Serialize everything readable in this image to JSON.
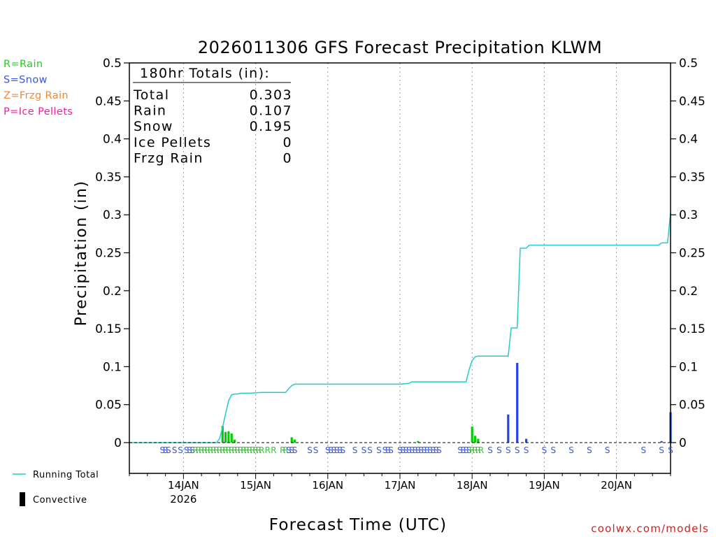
{
  "chart_data": {
    "type": "bar+line",
    "title": "2026011306 GFS Forecast Precipitation KLWM",
    "xlabel": "Forecast Time (UTC)",
    "ylabel": "Precipitation (in)",
    "ylim": [
      0,
      0.5
    ],
    "yticks": [
      0,
      0.05,
      0.1,
      0.15,
      0.2,
      0.25,
      0.3,
      0.35,
      0.4,
      0.45,
      0.5
    ],
    "ytick_labels": [
      "0",
      "0.05",
      "0.1",
      "0.15",
      "0.2",
      "0.25",
      "0.3",
      "0.35",
      "0.4",
      "0.45",
      "0.5"
    ],
    "x_unit": "forecast hours from 2026-01-13 06Z",
    "xlim": [
      0,
      180
    ],
    "xticks": [
      {
        "hour": 18,
        "label": "14JAN",
        "sublabel": "2026"
      },
      {
        "hour": 42,
        "label": "15JAN",
        "sublabel": ""
      },
      {
        "hour": 66,
        "label": "16JAN",
        "sublabel": ""
      },
      {
        "hour": 90,
        "label": "17JAN",
        "sublabel": ""
      },
      {
        "hour": 114,
        "label": "18JAN",
        "sublabel": ""
      },
      {
        "hour": 138,
        "label": "19JAN",
        "sublabel": ""
      },
      {
        "hour": 162,
        "label": "20JAN",
        "sublabel": ""
      }
    ],
    "totals_box": {
      "title": "180hr Totals (in):",
      "rows": [
        {
          "label": "Total",
          "value": "0.303"
        },
        {
          "label": "Rain",
          "value": "0.107"
        },
        {
          "label": "Snow",
          "value": "0.195"
        },
        {
          "label": "Ice Pellets",
          "value": "0"
        },
        {
          "label": "Frzg Rain",
          "value": "0"
        }
      ]
    },
    "type_legend": [
      {
        "text": "R=Rain",
        "color": "#22cc22"
      },
      {
        "text": "S=Snow",
        "color": "#3355ee"
      },
      {
        "text": "Z=Frzg Rain",
        "color": "#ee8833"
      },
      {
        "text": "P=Ice Pellets",
        "color": "#ee2299"
      }
    ],
    "series_legend": [
      {
        "name": "Running Total",
        "kind": "line",
        "color": "#22cccc"
      },
      {
        "name": "Convective",
        "kind": "bar",
        "color": "#000000"
      }
    ],
    "running_total": {
      "color": "#22cccc",
      "points": [
        [
          0,
          0
        ],
        [
          29,
          0
        ],
        [
          30,
          0.005
        ],
        [
          31,
          0.02
        ],
        [
          32,
          0.038
        ],
        [
          33,
          0.055
        ],
        [
          34,
          0.063
        ],
        [
          35,
          0.064
        ],
        [
          36,
          0.064
        ],
        [
          37,
          0.065
        ],
        [
          40,
          0.065
        ],
        [
          44,
          0.066
        ],
        [
          52,
          0.066
        ],
        [
          53,
          0.071
        ],
        [
          54,
          0.075
        ],
        [
          55,
          0.077
        ],
        [
          56,
          0.077
        ],
        [
          60,
          0.077
        ],
        [
          90,
          0.077
        ],
        [
          93,
          0.078
        ],
        [
          94,
          0.08
        ],
        [
          112,
          0.08
        ],
        [
          113,
          0.096
        ],
        [
          114,
          0.108
        ],
        [
          115,
          0.113
        ],
        [
          116,
          0.114
        ],
        [
          126,
          0.114
        ],
        [
          127,
          0.151
        ],
        [
          129,
          0.151
        ],
        [
          130,
          0.256
        ],
        [
          132,
          0.256
        ],
        [
          133,
          0.26
        ],
        [
          134,
          0.26
        ],
        [
          176,
          0.26
        ],
        [
          177,
          0.263
        ],
        [
          179,
          0.263
        ],
        [
          180,
          0.303
        ]
      ]
    },
    "bars": [
      {
        "hour": 31,
        "value": 0.022,
        "color": "#00cc00"
      },
      {
        "hour": 32,
        "value": 0.014,
        "color": "#00cc00"
      },
      {
        "hour": 33,
        "value": 0.015,
        "color": "#00cc00"
      },
      {
        "hour": 34,
        "value": 0.012,
        "color": "#00cc00"
      },
      {
        "hour": 35,
        "value": 0.004,
        "color": "#00cc00"
      },
      {
        "hour": 54,
        "value": 0.007,
        "color": "#00cc00"
      },
      {
        "hour": 55,
        "value": 0.004,
        "color": "#00cc00"
      },
      {
        "hour": 96,
        "value": 0.002,
        "color": "#00cc00"
      },
      {
        "hour": 114,
        "value": 0.021,
        "color": "#00cc00"
      },
      {
        "hour": 115,
        "value": 0.009,
        "color": "#00cc00"
      },
      {
        "hour": 116,
        "value": 0.005,
        "color": "#00cc00"
      },
      {
        "hour": 126,
        "value": 0.037,
        "color": "#2244ee"
      },
      {
        "hour": 129,
        "value": 0.105,
        "color": "#2244ee"
      },
      {
        "hour": 132,
        "value": 0.005,
        "color": "#2244ee"
      },
      {
        "hour": 177,
        "value": 0.002,
        "color": "#2244ee"
      },
      {
        "hour": 180,
        "value": 0.04,
        "color": "#2244ee"
      }
    ],
    "precip_type_markers": [
      {
        "hour": 11,
        "type": "S"
      },
      {
        "hour": 12,
        "type": "S"
      },
      {
        "hour": 13,
        "type": "S"
      },
      {
        "hour": 15,
        "type": "S"
      },
      {
        "hour": 17,
        "type": "S"
      },
      {
        "hour": 19,
        "type": "S"
      },
      {
        "hour": 20,
        "type": "S"
      },
      {
        "hour": 21,
        "type": "S"
      },
      {
        "hour": 22,
        "type": "R"
      },
      {
        "hour": 23,
        "type": "R"
      },
      {
        "hour": 24,
        "type": "R"
      },
      {
        "hour": 25,
        "type": "R"
      },
      {
        "hour": 26,
        "type": "R"
      },
      {
        "hour": 27,
        "type": "R"
      },
      {
        "hour": 28,
        "type": "R"
      },
      {
        "hour": 29,
        "type": "R"
      },
      {
        "hour": 30,
        "type": "R"
      },
      {
        "hour": 31,
        "type": "R"
      },
      {
        "hour": 32,
        "type": "R"
      },
      {
        "hour": 33,
        "type": "R"
      },
      {
        "hour": 34,
        "type": "R"
      },
      {
        "hour": 35,
        "type": "R"
      },
      {
        "hour": 36,
        "type": "R"
      },
      {
        "hour": 37,
        "type": "R"
      },
      {
        "hour": 38,
        "type": "R"
      },
      {
        "hour": 39,
        "type": "R"
      },
      {
        "hour": 40,
        "type": "R"
      },
      {
        "hour": 41,
        "type": "R"
      },
      {
        "hour": 42,
        "type": "R"
      },
      {
        "hour": 43,
        "type": "R"
      },
      {
        "hour": 44,
        "type": "R"
      },
      {
        "hour": 46,
        "type": "R"
      },
      {
        "hour": 48,
        "type": "R"
      },
      {
        "hour": 51,
        "type": "R"
      },
      {
        "hour": 52,
        "type": "R"
      },
      {
        "hour": 53,
        "type": "S"
      },
      {
        "hour": 54,
        "type": "S"
      },
      {
        "hour": 55,
        "type": "S"
      },
      {
        "hour": 60,
        "type": "S"
      },
      {
        "hour": 62,
        "type": "S"
      },
      {
        "hour": 66,
        "type": "S"
      },
      {
        "hour": 67,
        "type": "S"
      },
      {
        "hour": 68,
        "type": "S"
      },
      {
        "hour": 69,
        "type": "S"
      },
      {
        "hour": 70,
        "type": "S"
      },
      {
        "hour": 71,
        "type": "S"
      },
      {
        "hour": 75,
        "type": "S"
      },
      {
        "hour": 78,
        "type": "S"
      },
      {
        "hour": 80,
        "type": "S"
      },
      {
        "hour": 83,
        "type": "S"
      },
      {
        "hour": 85,
        "type": "S"
      },
      {
        "hour": 86,
        "type": "S"
      },
      {
        "hour": 87,
        "type": "S"
      },
      {
        "hour": 90,
        "type": "S"
      },
      {
        "hour": 91,
        "type": "S"
      },
      {
        "hour": 92,
        "type": "S"
      },
      {
        "hour": 93,
        "type": "S"
      },
      {
        "hour": 94,
        "type": "S"
      },
      {
        "hour": 95,
        "type": "S"
      },
      {
        "hour": 96,
        "type": "S"
      },
      {
        "hour": 97,
        "type": "S"
      },
      {
        "hour": 98,
        "type": "S"
      },
      {
        "hour": 99,
        "type": "S"
      },
      {
        "hour": 100,
        "type": "S"
      },
      {
        "hour": 101,
        "type": "S"
      },
      {
        "hour": 102,
        "type": "S"
      },
      {
        "hour": 103,
        "type": "S"
      },
      {
        "hour": 110,
        "type": "S"
      },
      {
        "hour": 111,
        "type": "S"
      },
      {
        "hour": 112,
        "type": "S"
      },
      {
        "hour": 113,
        "type": "S"
      },
      {
        "hour": 114,
        "type": "R"
      },
      {
        "hour": 115,
        "type": "R"
      },
      {
        "hour": 116,
        "type": "R"
      },
      {
        "hour": 117,
        "type": "R"
      },
      {
        "hour": 120,
        "type": "S"
      },
      {
        "hour": 123,
        "type": "S"
      },
      {
        "hour": 126,
        "type": "S"
      },
      {
        "hour": 129,
        "type": "S"
      },
      {
        "hour": 132,
        "type": "S"
      },
      {
        "hour": 138,
        "type": "S"
      },
      {
        "hour": 141,
        "type": "S"
      },
      {
        "hour": 147,
        "type": "S"
      },
      {
        "hour": 153,
        "type": "S"
      },
      {
        "hour": 159,
        "type": "S"
      },
      {
        "hour": 171,
        "type": "S"
      },
      {
        "hour": 177,
        "type": "S"
      },
      {
        "hour": 180,
        "type": "S"
      }
    ],
    "type_colors": {
      "R": "#33cc33",
      "S": "#3355ee",
      "Z": "#ee8833",
      "P": "#ee2299"
    },
    "credit": "coolwx.com/models",
    "credit_color": "#cc2222"
  }
}
